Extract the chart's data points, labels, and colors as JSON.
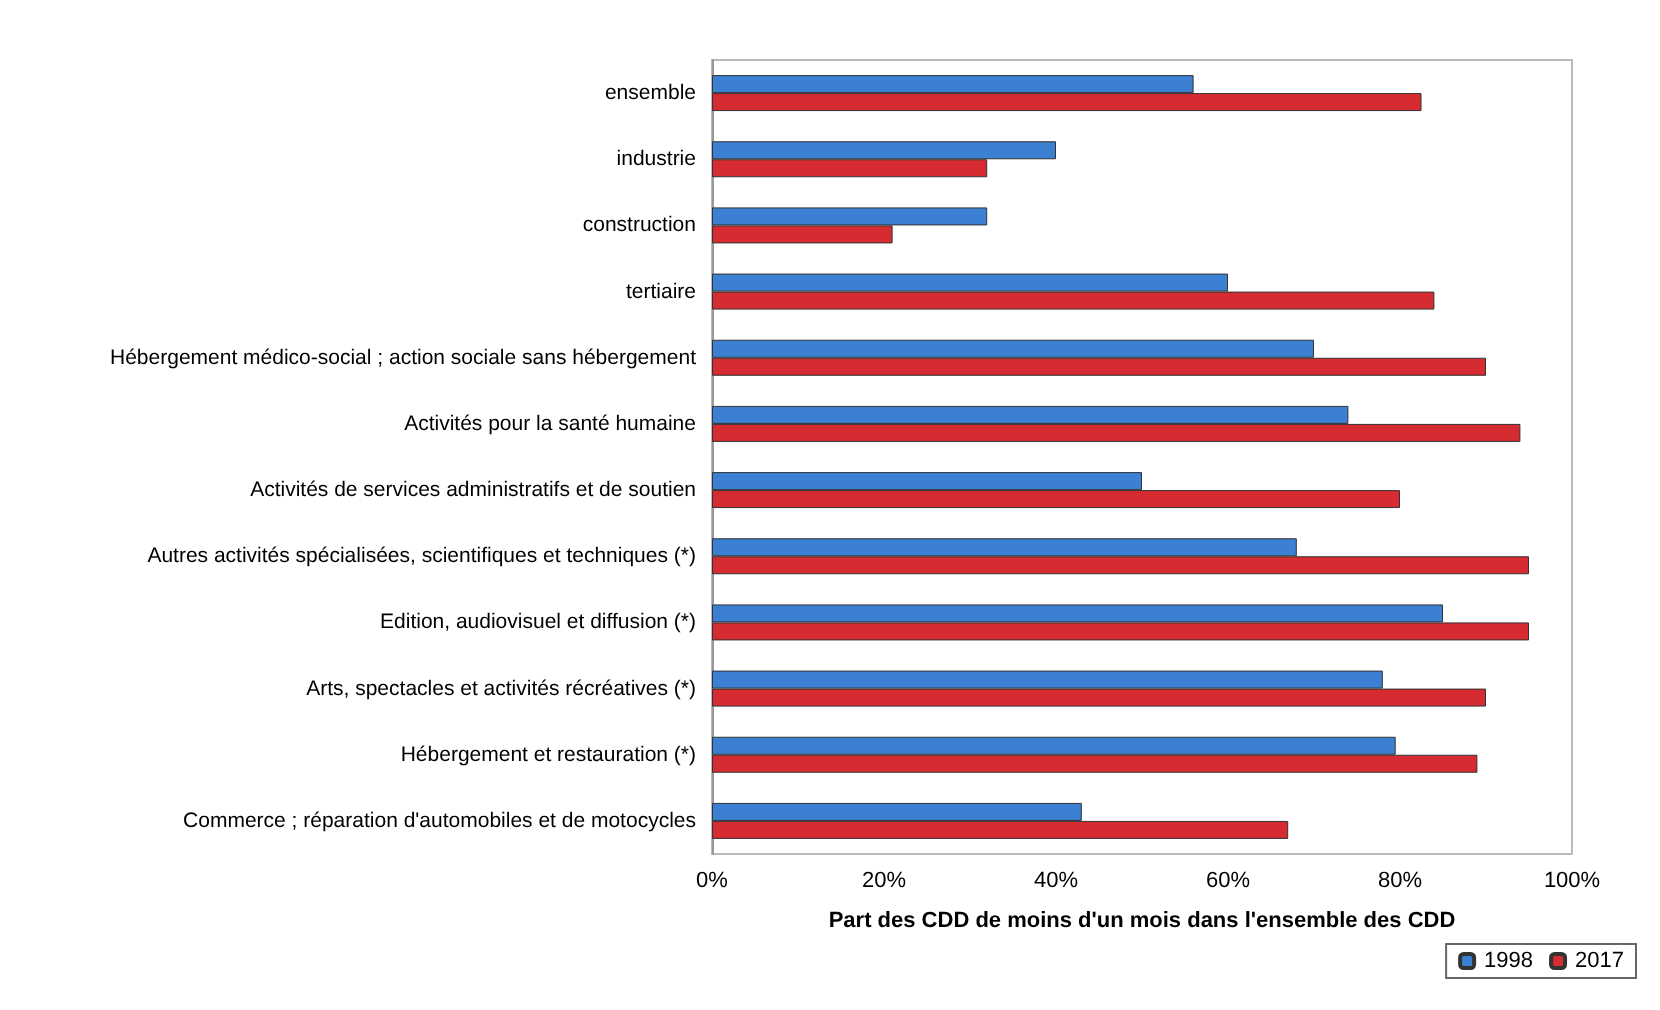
{
  "chart_data": {
    "type": "bar",
    "orientation": "horizontal",
    "xlabel": "Part des CDD de moins d'un mois dans l'ensemble des CDD",
    "categories": [
      "ensemble",
      "industrie",
      "construction",
      "tertiaire",
      "Hébergement médico-social ; action sociale sans hébergement",
      "Activités pour la santé humaine",
      "Activités de services administratifs et de soutien",
      "Autres activités spécialisées, scientifiques et techniques (*)",
      "Edition, audiovisuel et diffusion (*)",
      "Arts, spectacles et activités récréatives (*)",
      "Hébergement et restauration (*)",
      "Commerce ; réparation d'automobiles et de motocycles"
    ],
    "series": [
      {
        "name": "1998",
        "color": "#3b80d2",
        "values": [
          56,
          40,
          32,
          60,
          70,
          74,
          50,
          68,
          85,
          78,
          79.5,
          43
        ]
      },
      {
        "name": "2017",
        "color": "#d62b30",
        "values": [
          82.5,
          32,
          21,
          84,
          90,
          94,
          80,
          95,
          95,
          90,
          89,
          67
        ]
      }
    ],
    "xlim": [
      0,
      100
    ],
    "xticks": [
      {
        "value": 0,
        "label": "0%"
      },
      {
        "value": 20,
        "label": "20%"
      },
      {
        "value": 40,
        "label": "40%"
      },
      {
        "value": 60,
        "label": "60%"
      },
      {
        "value": 80,
        "label": "80%"
      },
      {
        "value": 100,
        "label": "100%"
      }
    ],
    "grid": false,
    "legend": "bottom right"
  }
}
